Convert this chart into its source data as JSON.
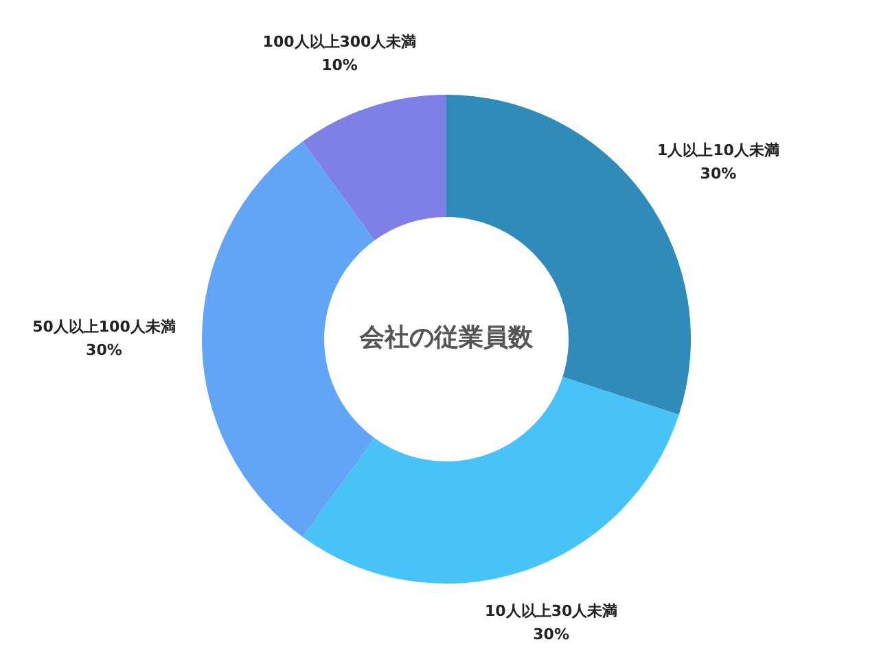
{
  "chart_data": {
    "type": "donut",
    "title": "会社の従業員数",
    "categories": [
      "1人以上10人未満",
      "10人以上30人未満",
      "50人以上100人未満",
      "100人以上300人未満"
    ],
    "values": [
      30,
      30,
      30,
      10
    ],
    "value_labels": [
      "30%",
      "30%",
      "30%",
      "10%"
    ],
    "colors": [
      "#2e8bba",
      "#48c3f8",
      "#62a5f7",
      "#7f7fe8"
    ],
    "legend": false
  }
}
